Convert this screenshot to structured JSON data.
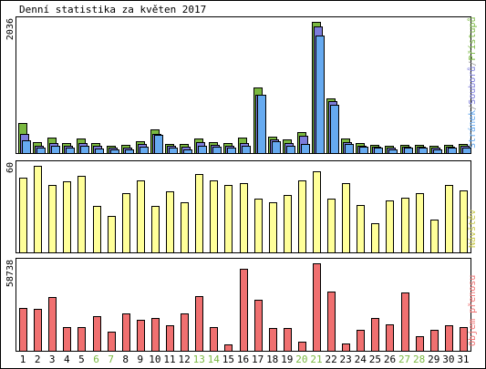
{
  "chart_data": {
    "type": "bar",
    "title": "Denní statistika za květen 2017",
    "categories": [
      "1",
      "2",
      "3",
      "4",
      "5",
      "6",
      "7",
      "8",
      "9",
      "10",
      "11",
      "12",
      "13",
      "14",
      "15",
      "16",
      "17",
      "18",
      "19",
      "20",
      "21",
      "22",
      "23",
      "24",
      "25",
      "26",
      "27",
      "28",
      "29",
      "30",
      "31"
    ],
    "weekend_days": [
      "6",
      "7",
      "13",
      "14",
      "20",
      "21",
      "27",
      "28"
    ],
    "panels": [
      {
        "id": "hits",
        "ymax_label": "2036",
        "ylim": [
          0,
          2036
        ],
        "legend_parts": [
          "Stránek",
          "/",
          "Souborů",
          "/",
          "Přístupů"
        ],
        "series": [
          {
            "name": "Přístupů",
            "color": "#7ab840",
            "values": [
              470,
              170,
              240,
              160,
              220,
              150,
              110,
              130,
              190,
              370,
              140,
              140,
              230,
              170,
              150,
              240,
              1020,
              260,
              210,
              330,
              2036,
              850,
              220,
              160,
              130,
              110,
              130,
              130,
              110,
              130,
              140
            ]
          },
          {
            "name": "Souborů",
            "color": "#7d7ddc",
            "values": [
              290,
              120,
              160,
              110,
              160,
              110,
              80,
              90,
              140,
              290,
              110,
              100,
              170,
              130,
              120,
              160,
              900,
              210,
              150,
              270,
              1960,
              810,
              170,
              120,
              100,
              80,
              100,
              100,
              80,
              100,
              110
            ]
          },
          {
            "name": "Stránek",
            "color": "#66aaf0",
            "values": [
              200,
              90,
              110,
              80,
              120,
              70,
              50,
              60,
              100,
              280,
              80,
              60,
              110,
              100,
              90,
              110,
              900,
              180,
              120,
              140,
              1820,
              750,
              140,
              100,
              80,
              60,
              80,
              80,
              60,
              80,
              90
            ]
          }
        ]
      },
      {
        "id": "visits",
        "ymax_label": "60",
        "ylim": [
          0,
          60
        ],
        "legend_parts": [
          "Návštěv"
        ],
        "series": [
          {
            "name": "Návštěv",
            "color": "#ffff99",
            "values": [
              52,
              60,
              47,
              49,
              53,
              32,
              25,
              41,
              50,
              32,
              42,
              35,
              54,
              50,
              47,
              48,
              37,
              35,
              40,
              50,
              56,
              37,
              48,
              33,
              20,
              36,
              38,
              41,
              23,
              47,
              43
            ]
          }
        ]
      },
      {
        "id": "traffic",
        "ymax_label": "58738",
        "ylim": [
          0,
          58738
        ],
        "legend_parts": [
          "Objem přenosu"
        ],
        "series": [
          {
            "name": "Objem přenosu",
            "color": "#f07070",
            "values": [
              29000,
              28000,
              36000,
              16000,
              16000,
              23000,
              13000,
              25000,
              21000,
              22000,
              17000,
              25000,
              37000,
              16000,
              4000,
              55000,
              34000,
              15000,
              15000,
              6000,
              58738,
              40000,
              5000,
              14000,
              22000,
              18000,
              39000,
              10000,
              14000,
              17000,
              16000
            ]
          }
        ]
      }
    ]
  }
}
